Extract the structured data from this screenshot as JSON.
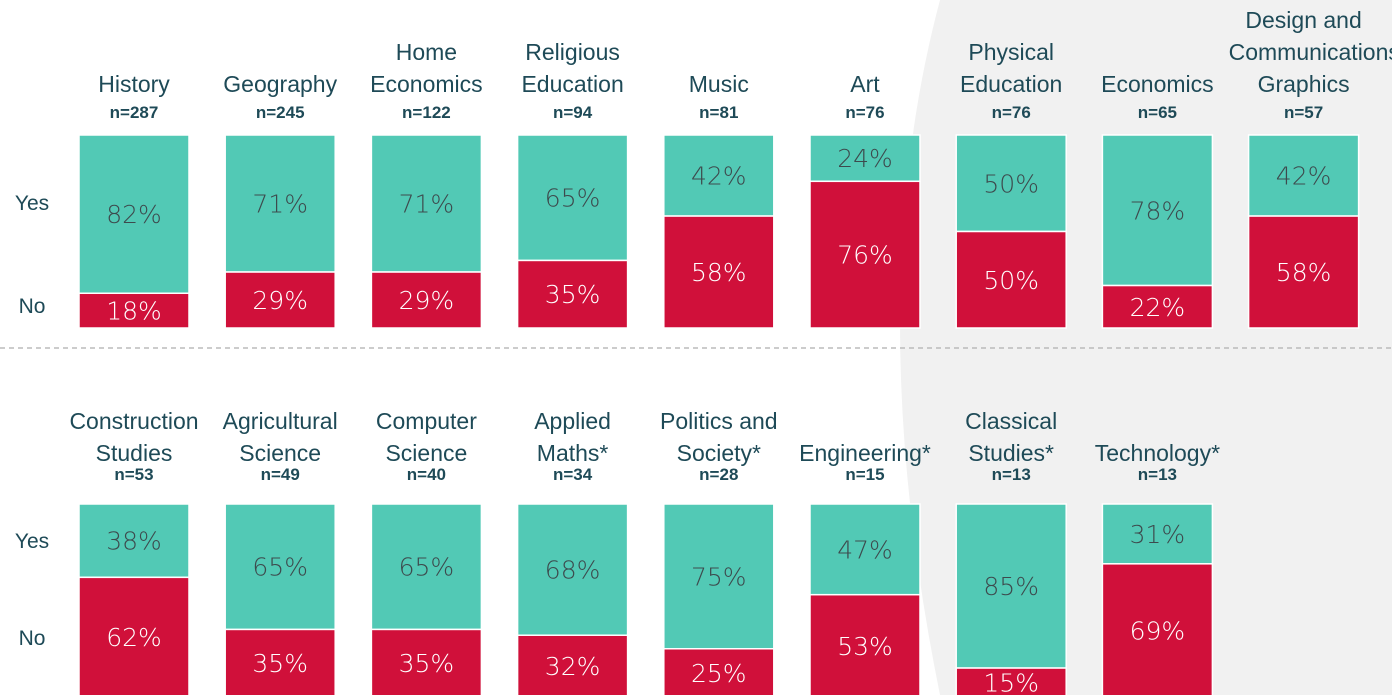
{
  "chart_data": [
    {
      "type": "bar",
      "stacked": true,
      "ylim": [
        0,
        100
      ],
      "categories": [
        "History",
        "Geography",
        "Home\nEconomics",
        "Religious\nEducation",
        "Music",
        "Art",
        "Physical\nEducation",
        "Economics",
        "Design and\nCommunications\nGraphics"
      ],
      "n_labels": [
        "n=287",
        "n=245",
        "n=122",
        "n=94",
        "n=81",
        "n=76",
        "n=76",
        "n=65",
        "n=57"
      ],
      "series": [
        {
          "name": "Yes",
          "color": "#52c9b5",
          "values": [
            82,
            71,
            71,
            65,
            42,
            24,
            50,
            78,
            42
          ],
          "value_labels": [
            "82%",
            "71%",
            "71%",
            "65%",
            "42%",
            "24%",
            "50%",
            "78%",
            "42%"
          ]
        },
        {
          "name": "No",
          "color": "#d0103a",
          "values": [
            18,
            29,
            29,
            35,
            58,
            76,
            50,
            22,
            58
          ],
          "value_labels": [
            "18%",
            "29%",
            "29%",
            "35%",
            "58%",
            "76%",
            "50%",
            "22%",
            "58%"
          ]
        }
      ]
    },
    {
      "type": "bar",
      "stacked": true,
      "ylim": [
        0,
        100
      ],
      "categories": [
        "Construction\nStudies",
        "Agricultural\nScience",
        "Computer\nScience",
        "Applied\nMaths*",
        "Politics and\nSociety*",
        "Engineering*",
        "Classical\nStudies*",
        "Technology*"
      ],
      "n_labels": [
        "n=53",
        "n=49",
        "n=40",
        "n=34",
        "n=28",
        "n=15",
        "n=13",
        "n=13"
      ],
      "series": [
        {
          "name": "Yes",
          "color": "#52c9b5",
          "values": [
            38,
            65,
            65,
            68,
            75,
            47,
            85,
            31
          ],
          "value_labels": [
            "38%",
            "65%",
            "65%",
            "68%",
            "75%",
            "47%",
            "85%",
            "31%"
          ]
        },
        {
          "name": "No",
          "color": "#d0103a",
          "values": [
            62,
            35,
            35,
            32,
            25,
            53,
            15,
            69
          ],
          "value_labels": [
            "62%",
            "35%",
            "35%",
            "32%",
            "25%",
            "53%",
            "15%",
            "69%"
          ]
        }
      ]
    }
  ]
}
